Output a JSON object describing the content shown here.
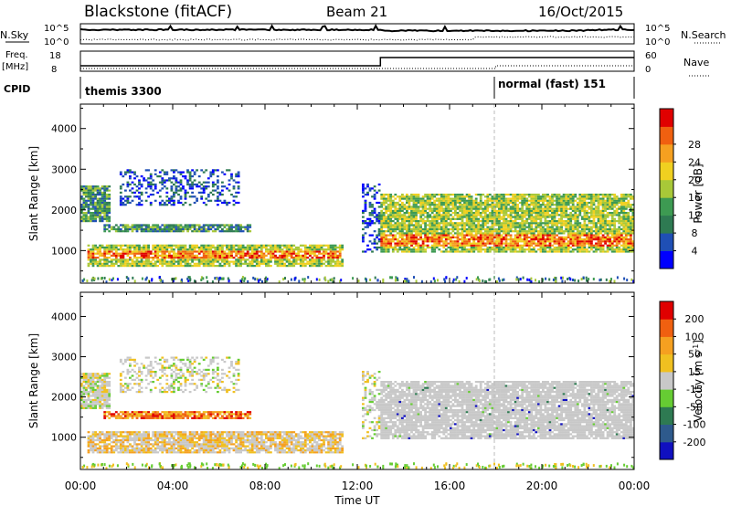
{
  "header": {
    "station": "Blackstone (fitACF)",
    "beam": "Beam 21",
    "date": "16/Oct/2015"
  },
  "top_panels": {
    "nsky": {
      "label": "N.Sky",
      "tick_top": "10^5",
      "tick_bottom": "10^0",
      "right_label": "N.Search",
      "right_tick_top": "10^5",
      "right_tick_bottom": "10^0"
    },
    "freq": {
      "label": "Freq.",
      "unit": "[MHz]",
      "tick_top": "18",
      "tick_bottom": "8",
      "right_label": "Nave",
      "right_tick_top": "60",
      "right_tick_bottom": "0"
    },
    "cpid": {
      "label": "CPID",
      "segments": [
        {
          "text": "themis 3300",
          "start_hour": 0
        },
        {
          "text": "normal (fast) 151",
          "start_hour": 18
        }
      ]
    }
  },
  "colors": {
    "axis": "#000000",
    "dashed_marker": "#bbbbbb",
    "ground_scatter": "#c8c8c8"
  },
  "chart_data": [
    {
      "type": "heatmap",
      "panel": "power",
      "ylabel": "Slant Range [km]",
      "ylim": [
        200,
        4600
      ],
      "yticks": [
        "1000",
        "2000",
        "3000",
        "4000"
      ],
      "ytick_values": [
        1000,
        2000,
        3000,
        4000
      ],
      "colorbar": {
        "label": "Power [dB]",
        "ticks": [
          "4",
          "8",
          "12",
          "16",
          "20",
          "24",
          "28"
        ],
        "colors": [
          "#0000ff",
          "#1f4fb5",
          "#2e7a52",
          "#3d9a52",
          "#a8c838",
          "#f0d020",
          "#f5a020",
          "#f06010",
          "#e00000"
        ]
      },
      "bands": [
        {
          "t": [
            0.3,
            11.3
          ],
          "r": [
            600,
            1150
          ],
          "peak_r": [
            780,
            950
          ],
          "level": "high"
        },
        {
          "t": [
            1.0,
            7.3
          ],
          "r": [
            1450,
            1650
          ],
          "level": "mid"
        },
        {
          "t": [
            0.0,
            1.3
          ],
          "r": [
            1700,
            2600
          ],
          "level": "mid"
        },
        {
          "t": [
            1.7,
            6.8
          ],
          "r": [
            2100,
            3000
          ],
          "level": "low"
        },
        {
          "t": [
            12.2,
            12.9
          ],
          "r": [
            950,
            2700
          ],
          "level": "low"
        },
        {
          "t": [
            13.0,
            24.0
          ],
          "r": [
            950,
            2400
          ],
          "peak_r": [
            1100,
            1350
          ],
          "level": "high"
        }
      ]
    },
    {
      "type": "heatmap",
      "panel": "velocity",
      "ylabel": "Slant Range [km]",
      "ylim": [
        200,
        4600
      ],
      "yticks": [
        "1000",
        "2000",
        "3000",
        "4000"
      ],
      "ytick_values": [
        1000,
        2000,
        3000,
        4000
      ],
      "xlabel": "Time UT",
      "xticks": [
        "00:00",
        "04:00",
        "08:00",
        "12:00",
        "16:00",
        "20:00",
        "00:00"
      ],
      "xtick_values": [
        0,
        4,
        8,
        12,
        16,
        20,
        24
      ],
      "xlim": [
        0,
        24
      ],
      "colorbar": {
        "label": "Velocity [m s^-1]",
        "ticks": [
          "200",
          "100",
          "50",
          "15",
          "-15",
          "-50",
          "-100",
          "-200"
        ],
        "colors": [
          "#1010c0",
          "#2e5a8c",
          "#2e7a52",
          "#66cc33",
          "#c8c8c8",
          "#f0c020",
          "#f5a020",
          "#f06010",
          "#e00000"
        ]
      }
    }
  ]
}
